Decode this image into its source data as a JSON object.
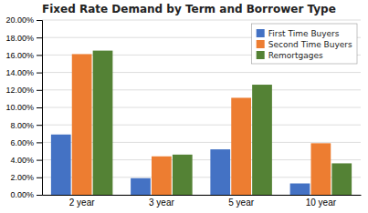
{
  "chart_data": {
    "type": "bar",
    "title": "Fixed Rate Demand by Term and Borrower Type",
    "categories": [
      "2 year",
      "3 year",
      "5 year",
      "10 year"
    ],
    "series": [
      {
        "name": "First Time Buyers",
        "color": "#4472C4",
        "values": [
          0.069,
          0.019,
          0.052,
          0.013
        ]
      },
      {
        "name": "Second Time Buyers",
        "color": "#ED7D31",
        "values": [
          0.161,
          0.044,
          0.111,
          0.059
        ]
      },
      {
        "name": "Remortgages",
        "color": "#548235",
        "values": [
          0.165,
          0.046,
          0.126,
          0.036
        ]
      }
    ],
    "ylim": [
      0,
      0.2
    ],
    "yticks": [
      {
        "value": 0.0,
        "label": "0.00%"
      },
      {
        "value": 0.02,
        "label": "2.00%"
      },
      {
        "value": 0.04,
        "label": "4.00%"
      },
      {
        "value": 0.06,
        "label": "6.00%"
      },
      {
        "value": 0.08,
        "label": "8.00%"
      },
      {
        "value": 0.1,
        "label": "10.00%"
      },
      {
        "value": 0.12,
        "label": "12.00%"
      },
      {
        "value": 0.14,
        "label": "14.00%"
      },
      {
        "value": 0.16,
        "label": "16.00%"
      },
      {
        "value": 0.18,
        "label": "18.00%"
      },
      {
        "value": 0.2,
        "label": "20.00%"
      }
    ],
    "grid": true,
    "legend": "upper right"
  }
}
